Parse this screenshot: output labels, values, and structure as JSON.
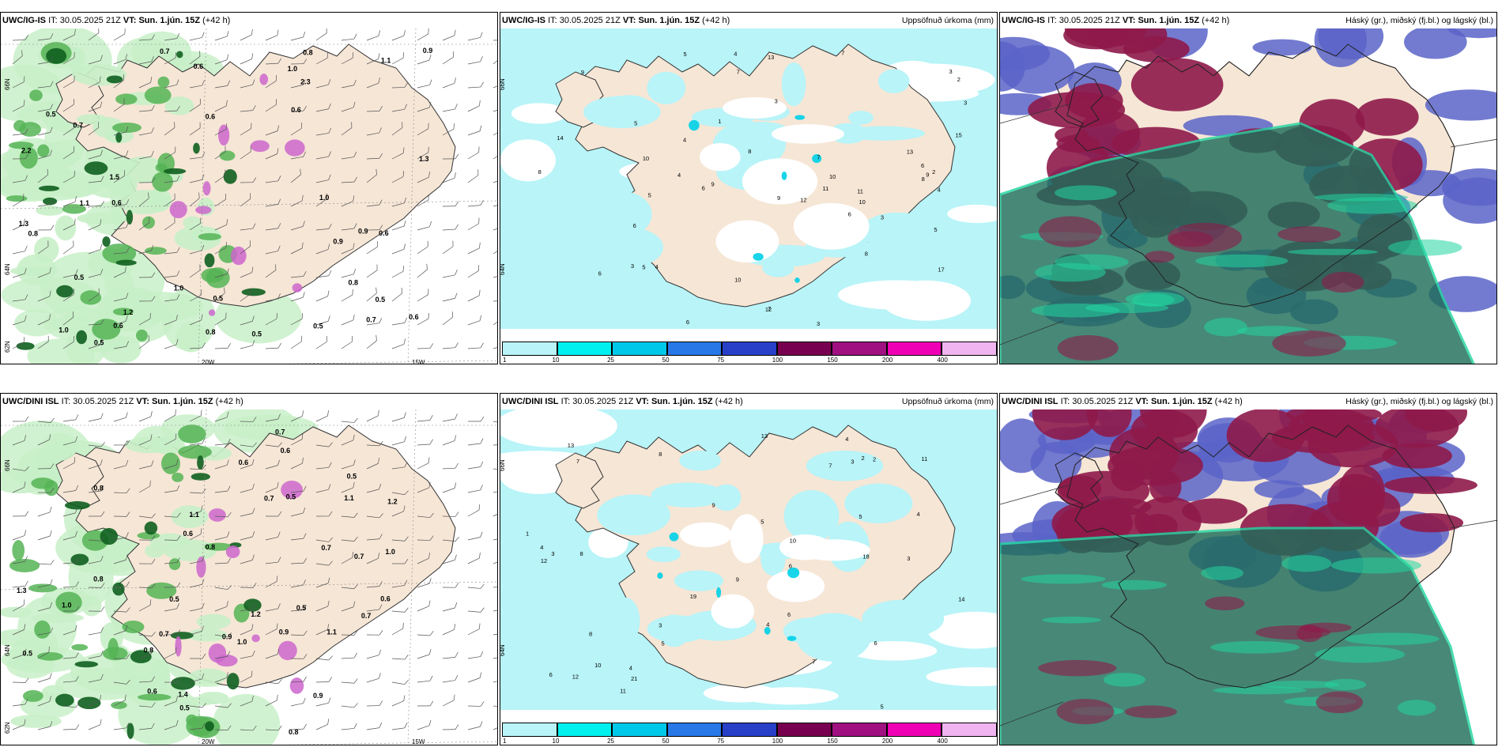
{
  "colors": {
    "land": "#f6e6d6",
    "precip_light": "#c8f0c8",
    "precip_mid": "#55b455",
    "precip_dark": "#0f5f1f",
    "snow": "#cc66cc",
    "cyan_precip": "#b8f4f8",
    "cloud_high": "#8e1a4a",
    "cloud_mid": "#5b64c8",
    "cloud_low": "#1f6e5a",
    "cloud_low_edge": "#22d6a0"
  },
  "panels": [
    {
      "model": "UWC/IG-IS",
      "it_label": "IT:",
      "it_value": "30.05.2025 21Z",
      "vt_label": "VT:",
      "vt_value": "Sun. 1.jún. 15Z",
      "lead": "(+42 h)",
      "label": "",
      "field": "precip-wind"
    },
    {
      "model": "UWC/IG-IS",
      "it_label": "IT:",
      "it_value": "30.05.2025 21Z",
      "vt_label": "VT:",
      "vt_value": "Sun. 1.jún. 15Z",
      "lead": "(+42 h)",
      "label": "Uppsöfnuð úrkoma (mm)",
      "field": "accum-precip"
    },
    {
      "model": "UWC/IG-IS",
      "it_label": "IT:",
      "it_value": "30.05.2025 21Z",
      "vt_label": "VT:",
      "vt_value": "Sun. 1.jún. 15Z",
      "lead": "(+42 h)",
      "label": "Háský (gr.), miðský (fj.bl.) og lágský (bl.)",
      "field": "clouds"
    },
    {
      "model": "UWC/DINI ISL",
      "it_label": "IT:",
      "it_value": "30.05.2025 21Z",
      "vt_label": "VT:",
      "vt_value": "Sun. 1.jún. 15Z",
      "lead": "(+42 h)",
      "label": "",
      "field": "precip-wind"
    },
    {
      "model": "UWC/DINI ISL",
      "it_label": "IT:",
      "it_value": "30.05.2025 21Z",
      "vt_label": "VT:",
      "vt_value": "Sun. 1.jún. 15Z",
      "lead": "(+42 h)",
      "label": "Uppsöfnuð úrkoma (mm)",
      "field": "accum-precip"
    },
    {
      "model": "UWC/DINI ISL",
      "it_label": "IT:",
      "it_value": "30.05.2025 21Z",
      "vt_label": "VT:",
      "vt_value": "Sun. 1.jún. 15Z",
      "lead": "(+42 h)",
      "label": "Háský (gr.), miðský (fj.bl.) og lágský (bl.)",
      "field": "clouds"
    }
  ],
  "axis_labels": {
    "lat_66": "66N",
    "lat_64": "64N",
    "lat_62": "62N",
    "lon_20": "20W",
    "lon_15": "15W"
  },
  "legend": {
    "ticks": [
      "1",
      "10",
      "25",
      "50",
      "75",
      "100",
      "150",
      "200",
      "400"
    ],
    "colors": [
      "#b8f4f8",
      "#00f0f0",
      "#00c8e8",
      "#2878e8",
      "#2840c8",
      "#780050",
      "#a01080",
      "#f000b4",
      "#f0b4f0"
    ]
  },
  "precip_numbers_top": [
    "0.9",
    "0.8",
    "0.7",
    "2.3",
    "1.0",
    "0.6",
    "0.6",
    "1.0",
    "0.5",
    "1.0",
    "0.6",
    "1.5",
    "0.6",
    "0.5",
    "0.7",
    "1.2",
    "0.5",
    "0.5",
    "0.7",
    "0.8",
    "0.6",
    "0.9",
    "0.8",
    "1.0",
    "1.3",
    "0.9",
    "0.5",
    "0.6",
    "0.5",
    "1.1",
    "2.2",
    "0.8",
    "1.1",
    "0.6",
    "1.3",
    "0.5"
  ],
  "precip_numbers_bottom": [
    "0.9",
    "1.0",
    "0.8",
    "0.5",
    "1.1",
    "0.7",
    "0.6",
    "0.9",
    "0.5",
    "0.8",
    "0.7",
    "1.0",
    "0.6",
    "0.7",
    "0.5",
    "0.8",
    "1.2",
    "0.6",
    "0.7",
    "0.9",
    "0.5",
    "1.0",
    "1.1",
    "0.7",
    "0.6",
    "1.3",
    "0.5",
    "0.8",
    "1.2",
    "0.7",
    "1.4",
    "1.1",
    "0.8",
    "0.6",
    "0.5"
  ],
  "accum_numbers_top": [
    "4",
    "5",
    "3",
    "6",
    "7",
    "8",
    "13",
    "5",
    "9",
    "10",
    "7",
    "6",
    "9",
    "10",
    "11",
    "5",
    "3",
    "6",
    "4",
    "8",
    "12",
    "3",
    "17",
    "10",
    "6",
    "9",
    "14",
    "2",
    "4",
    "3",
    "5",
    "7",
    "11",
    "9",
    "8",
    "6",
    "10",
    "4",
    "3",
    "13",
    "15",
    "7",
    "8",
    "12",
    "5",
    "2",
    "3",
    "1",
    "6",
    "4"
  ],
  "accum_numbers_bottom": [
    "4",
    "5",
    "6",
    "3",
    "4",
    "7",
    "8",
    "13",
    "10",
    "9",
    "6",
    "4",
    "5",
    "11",
    "12",
    "14",
    "18",
    "21",
    "4",
    "3",
    "6",
    "7",
    "8",
    "9",
    "13",
    "5",
    "4",
    "6",
    "10",
    "11",
    "7",
    "3",
    "2",
    "1",
    "5",
    "8",
    "12",
    "19",
    "2",
    "3"
  ]
}
